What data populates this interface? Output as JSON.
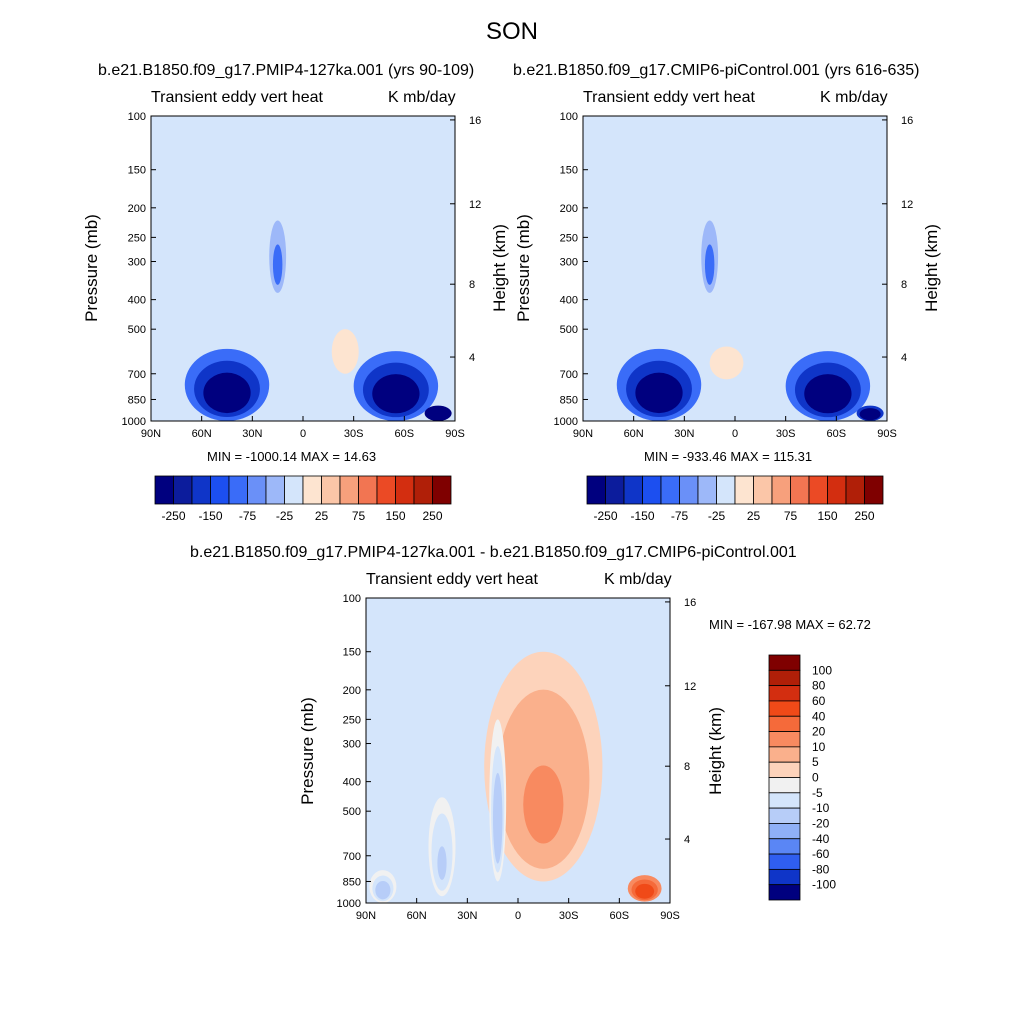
{
  "suptitle": "SON",
  "chart_data": [
    {
      "type": "heatmap",
      "title": "b.e21.B1850.f09_g17.PMIP4-127ka.001 (yrs 90-109)",
      "left_subtitle": "Transient eddy vert heat",
      "right_subtitle": "K mb/day",
      "xlabel": "",
      "ylabel": "Pressure (mb)",
      "ylabel_right": "Height (km)",
      "x_ticks": [
        "90N",
        "60N",
        "30N",
        "0",
        "30S",
        "60S",
        "90S"
      ],
      "y_ticks": [
        "100",
        "150",
        "200",
        "250",
        "300",
        "400",
        "500",
        "700",
        "850",
        "1000"
      ],
      "y_right_ticks": [
        "16",
        "12",
        "8",
        "4"
      ],
      "ylim": [
        1000,
        100
      ],
      "stats": "MIN = -1000.14  MAX = 14.63",
      "colorbar_levels": [
        "-250",
        "-150",
        "-75",
        "-25",
        "25",
        "75",
        "150",
        "250"
      ],
      "colorbar_colors": [
        "#00007f",
        "#0c1c9c",
        "#0f35c8",
        "#1c4ff0",
        "#3a6cf8",
        "#6a90f8",
        "#9db8f9",
        "#d4e5fb",
        "#fde4d0",
        "#fbc6a8",
        "#f7a07c",
        "#f27552",
        "#eb4a25",
        "#d32e10",
        "#b01f08",
        "#7f0000"
      ],
      "features": [
        {
          "cx": 45,
          "cy": 860,
          "rx": 25,
          "ry": 280,
          "value": -400
        },
        {
          "cx": -55,
          "cy": 860,
          "rx": 25,
          "ry": 270,
          "value": -420
        },
        {
          "cx": -80,
          "cy": 950,
          "rx": 8,
          "ry": 60,
          "value": -1000
        },
        {
          "cx": 15,
          "cy": 300,
          "rx": 5,
          "ry": 80,
          "value": -120
        },
        {
          "cx": -25,
          "cy": 600,
          "rx": 8,
          "ry": 100,
          "value": 10
        }
      ]
    },
    {
      "type": "heatmap",
      "title": "b.e21.B1850.f09_g17.CMIP6-piControl.001 (yrs 616-635)",
      "left_subtitle": "Transient eddy vert heat",
      "right_subtitle": "K mb/day",
      "xlabel": "",
      "ylabel": "Pressure (mb)",
      "ylabel_right": "Height (km)",
      "x_ticks": [
        "90N",
        "60N",
        "30N",
        "0",
        "30S",
        "60S",
        "90S"
      ],
      "y_ticks": [
        "100",
        "150",
        "200",
        "250",
        "300",
        "400",
        "500",
        "700",
        "850",
        "1000"
      ],
      "y_right_ticks": [
        "16",
        "12",
        "8",
        "4"
      ],
      "ylim": [
        1000,
        100
      ],
      "stats": "MIN = -933.46  MAX = 115.31",
      "colorbar_levels": [
        "-250",
        "-150",
        "-75",
        "-25",
        "25",
        "75",
        "150",
        "250"
      ],
      "colorbar_colors": [
        "#00007f",
        "#0c1c9c",
        "#0f35c8",
        "#1c4ff0",
        "#3a6cf8",
        "#6a90f8",
        "#9db8f9",
        "#d4e5fb",
        "#fde4d0",
        "#fbc6a8",
        "#f7a07c",
        "#f27552",
        "#eb4a25",
        "#d32e10",
        "#b01f08",
        "#7f0000"
      ],
      "features": [
        {
          "cx": 45,
          "cy": 860,
          "rx": 25,
          "ry": 280,
          "value": -380
        },
        {
          "cx": -55,
          "cy": 860,
          "rx": 25,
          "ry": 270,
          "value": -400
        },
        {
          "cx": -80,
          "cy": 950,
          "rx": 8,
          "ry": 60,
          "value": -930
        },
        {
          "cx": 15,
          "cy": 300,
          "rx": 5,
          "ry": 80,
          "value": -110
        },
        {
          "cx": 5,
          "cy": 650,
          "rx": 10,
          "ry": 80,
          "value": 10
        }
      ]
    },
    {
      "type": "heatmap",
      "title": "b.e21.B1850.f09_g17.PMIP4-127ka.001 - b.e21.B1850.f09_g17.CMIP6-piControl.001",
      "left_subtitle": "Transient eddy vert heat",
      "right_subtitle": "K mb/day",
      "xlabel": "",
      "ylabel": "Pressure (mb)",
      "ylabel_right": "Height (km)",
      "x_ticks": [
        "90N",
        "60N",
        "30N",
        "0",
        "30S",
        "60S",
        "90S"
      ],
      "y_ticks": [
        "100",
        "150",
        "200",
        "250",
        "300",
        "400",
        "500",
        "700",
        "850",
        "1000"
      ],
      "y_right_ticks": [
        "16",
        "12",
        "8",
        "4"
      ],
      "ylim": [
        1000,
        100
      ],
      "stats": "MIN = -167.98  MAX =  62.72",
      "colorbar_levels": [
        "100",
        "80",
        "60",
        "40",
        "20",
        "10",
        "5",
        "0",
        "-5",
        "-10",
        "-20",
        "-40",
        "-60",
        "-80",
        "-100"
      ],
      "colorbar_colors": [
        "#7f0000",
        "#b01f08",
        "#d32e10",
        "#f04a18",
        "#f56a3a",
        "#f88a60",
        "#fab08c",
        "#fdd3bb",
        "#f1f1f1",
        "#d4e5fb",
        "#b7cdf8",
        "#8fb0f7",
        "#5a86f5",
        "#2f5ef0",
        "#0f35c8",
        "#00007f"
      ],
      "features": [
        {
          "cx": -15,
          "cy": 500,
          "rx": 35,
          "ry": 350,
          "value": 12
        },
        {
          "cx": -75,
          "cy": 900,
          "rx": 10,
          "ry": 90,
          "value": 55
        },
        {
          "cx": 45,
          "cy": 700,
          "rx": 8,
          "ry": 250,
          "value": -12
        },
        {
          "cx": 12,
          "cy": 550,
          "rx": 5,
          "ry": 300,
          "value": -14
        },
        {
          "cx": 80,
          "cy": 900,
          "rx": 8,
          "ry": 120,
          "value": -18
        }
      ]
    }
  ]
}
